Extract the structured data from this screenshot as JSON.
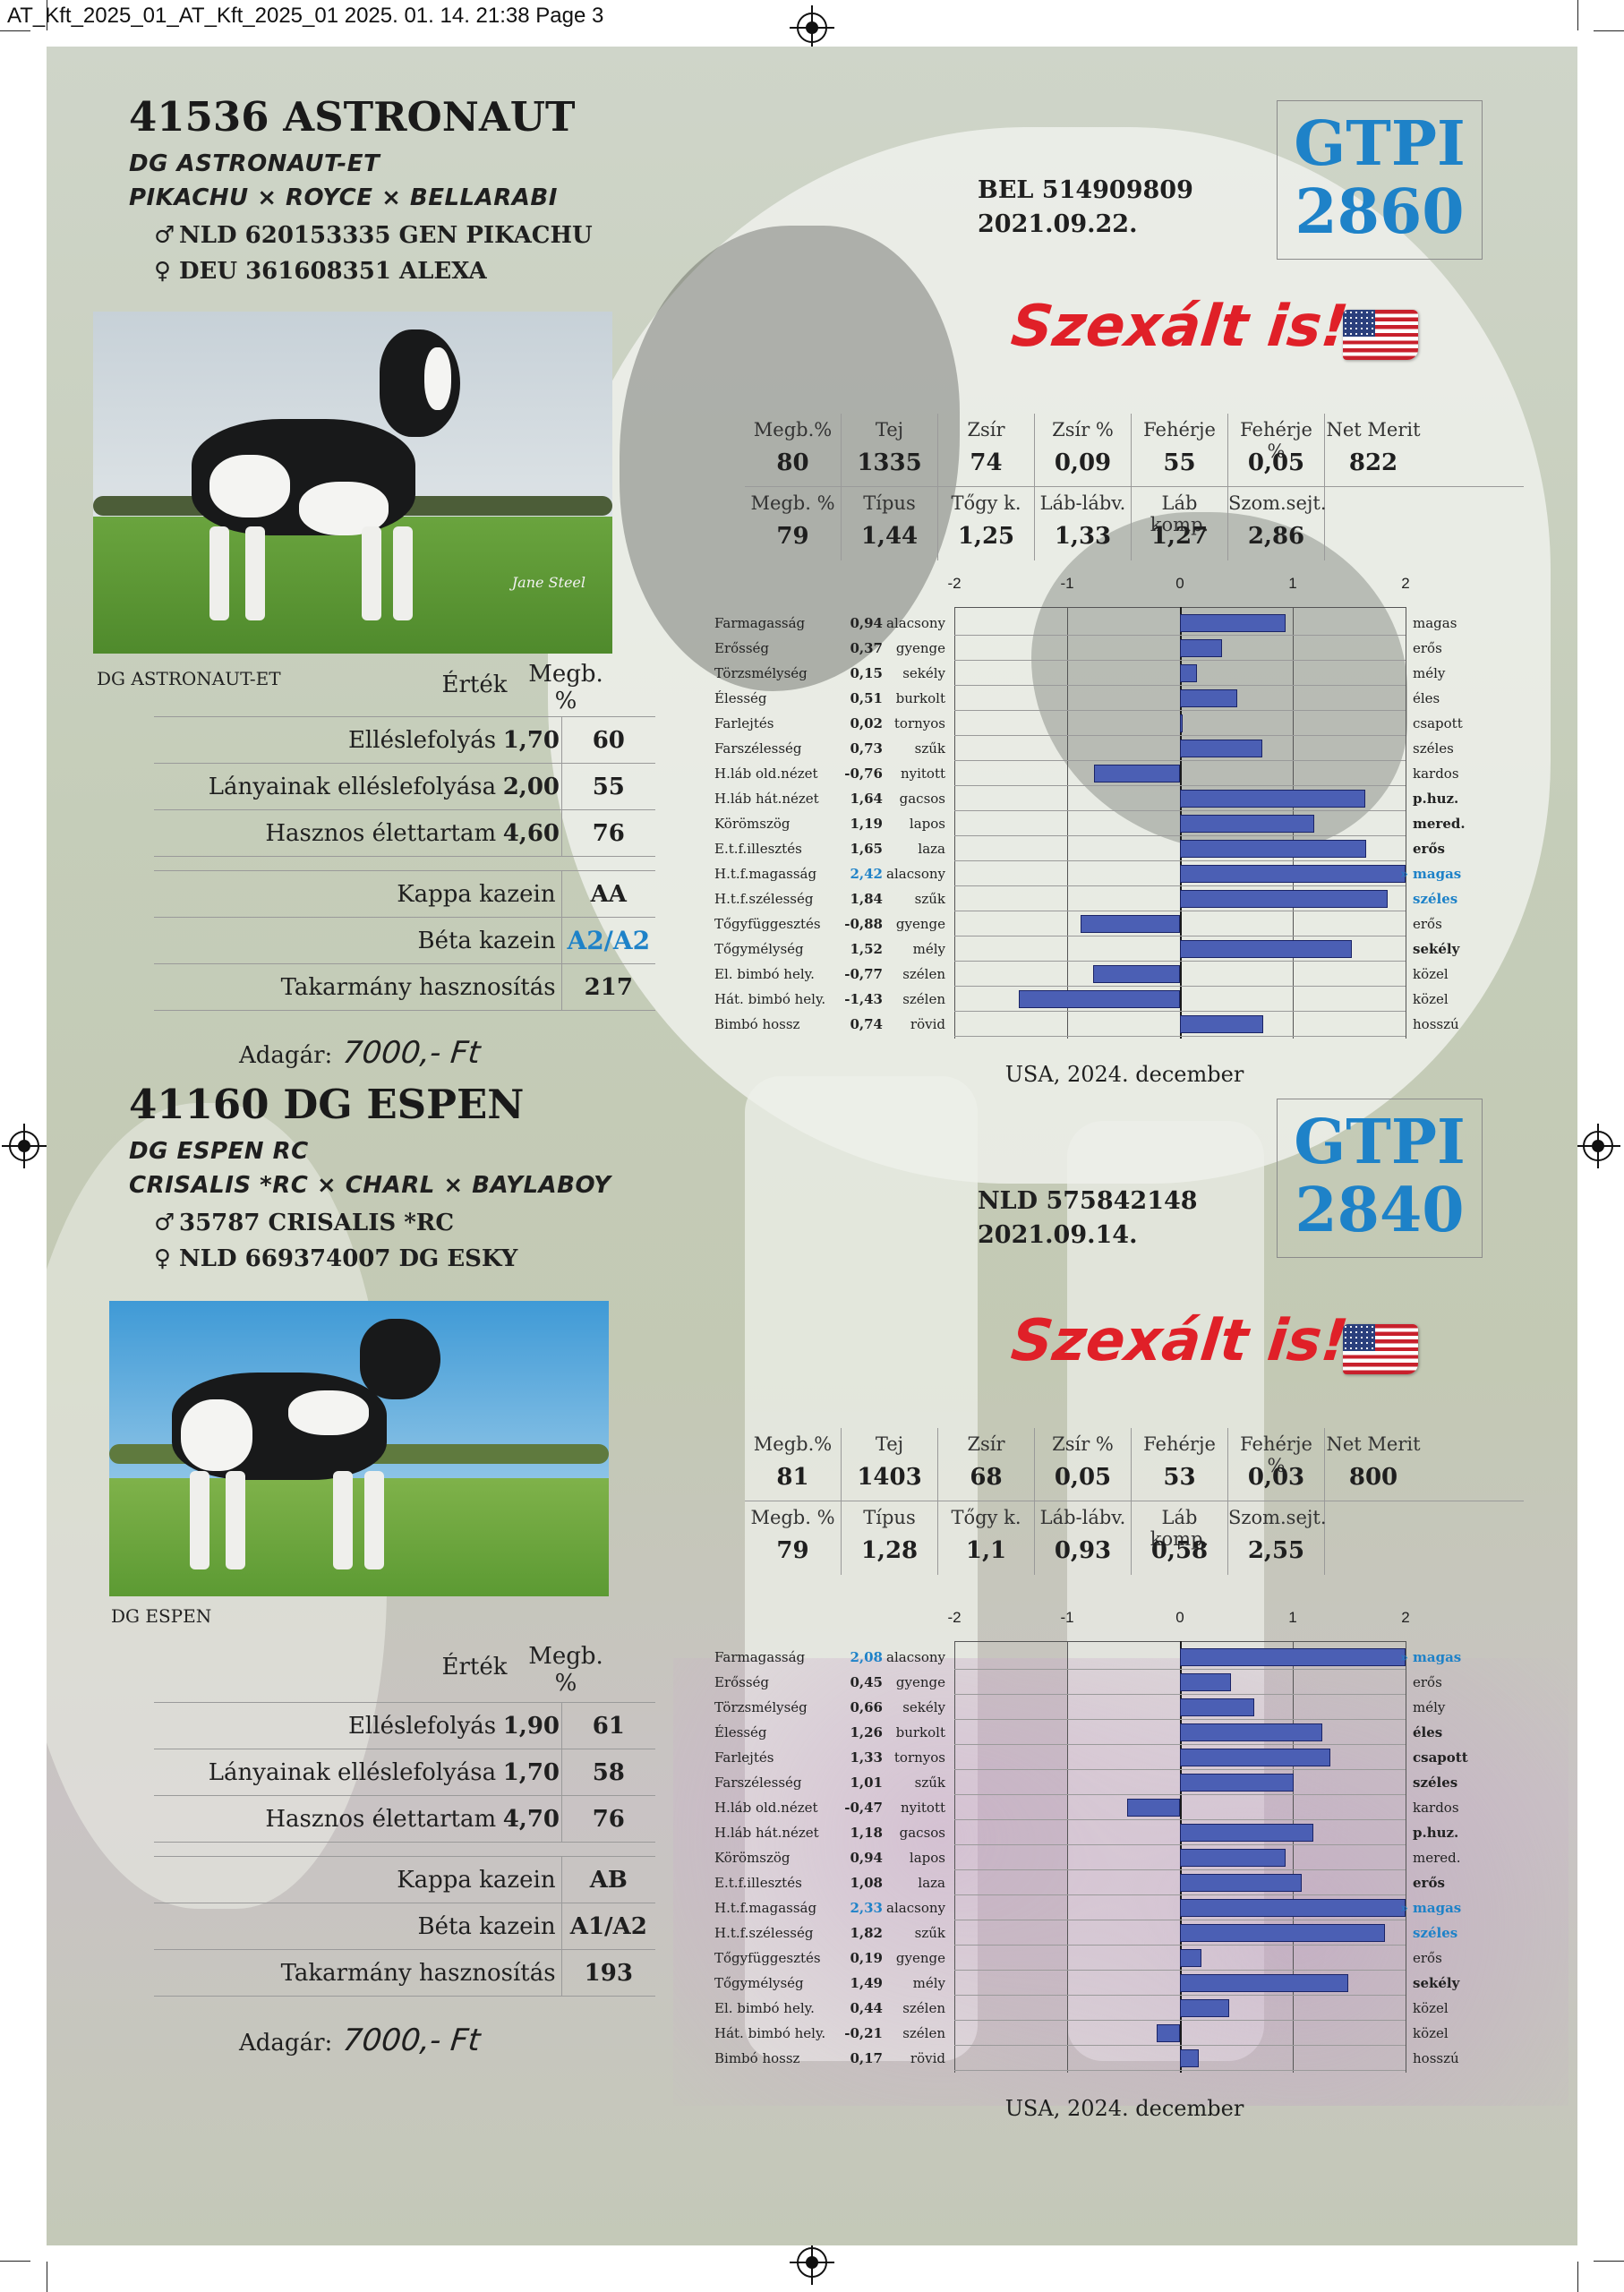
{
  "print_header": "AT_Kft_2025_01_AT_Kft_2025_01  2025. 01. 14.  21:38  Page 3",
  "bulls": [
    {
      "title": "41536 ASTRONAUT",
      "registered_name": "DG ASTRONAUT-ET",
      "pedigree": "PIKACHU × ROYCE × BELLARABI",
      "sire_symbol": "♂",
      "sire": "NLD 620153335 GEN PIKACHU",
      "dam_symbol": "♀",
      "dam": "DEU 361608351 ALEXA",
      "reg_id": "BEL 514909809",
      "birth_date": "2021.09.22.",
      "gtpi_label": "GTPI",
      "gtpi_value": "2860",
      "sexed_text": "Szexált is!",
      "flag_icon": "us-flag-icon",
      "photo_caption": "DG ASTRONAUT-ET",
      "photo_signature": "Jane Steel",
      "eval_header": {
        "value": "Érték",
        "reliability": "Megb.\n%"
      },
      "calving": [
        {
          "label": "Elléslefolyás",
          "value": "1,70",
          "rel": "60"
        },
        {
          "label": "Lányainak elléslefolyása",
          "value": "2,00",
          "rel": "55"
        },
        {
          "label": "Hasznos élettartam",
          "value": "4,60",
          "rel": "76"
        }
      ],
      "genetics": [
        {
          "label": "Kappa kazein",
          "value": "AA",
          "highlight": false
        },
        {
          "label": "Béta kazein",
          "value": "A2/A2",
          "highlight": true
        },
        {
          "label": "Takarmány hasznosítás",
          "value": "217",
          "highlight": false
        }
      ],
      "price_label": "Adagár:",
      "price": "7000,- Ft",
      "indices_row1": [
        {
          "label": "Megb.%",
          "value": "80"
        },
        {
          "label": "Tej",
          "value": "1335"
        },
        {
          "label": "Zsír",
          "value": "74"
        },
        {
          "label": "Zsír %",
          "value": "0,09"
        },
        {
          "label": "Fehérje",
          "value": "55"
        },
        {
          "label": "Fehérje %",
          "value": "0,05"
        },
        {
          "label": "Net Merit",
          "value": "822"
        }
      ],
      "indices_row2": [
        {
          "label": "Megb. %",
          "value": "79"
        },
        {
          "label": "Típus",
          "value": "1,44"
        },
        {
          "label": "Tőgy k.",
          "value": "1,25"
        },
        {
          "label": "Láb-lábv.",
          "value": "1,33"
        },
        {
          "label": "Láb komp.",
          "value": "1,27"
        },
        {
          "label": "Szom.sejt.",
          "value": "2,86"
        }
      ],
      "profile_caption": "USA, 2024. december"
    },
    {
      "title": "41160 DG ESPEN",
      "registered_name": "DG ESPEN RC",
      "pedigree": "CRISALIS *RC × CHARL × BAYLABOY",
      "sire_symbol": "♂",
      "sire": "35787 CRISALIS *RC",
      "dam_symbol": "♀",
      "dam": "NLD 669374007 DG ESKY",
      "reg_id": "NLD 575842148",
      "birth_date": "2021.09.14.",
      "gtpi_label": "GTPI",
      "gtpi_value": "2840",
      "sexed_text": "Szexált is!",
      "flag_icon": "us-flag-icon",
      "photo_caption": "DG ESPEN",
      "photo_signature": "",
      "eval_header": {
        "value": "Érték",
        "reliability": "Megb.\n%"
      },
      "calving": [
        {
          "label": "Elléslefolyás",
          "value": "1,90",
          "rel": "61"
        },
        {
          "label": "Lányainak elléslefolyása",
          "value": "1,70",
          "rel": "58"
        },
        {
          "label": "Hasznos élettartam",
          "value": "4,70",
          "rel": "76"
        }
      ],
      "genetics": [
        {
          "label": "Kappa kazein",
          "value": "AB",
          "highlight": false
        },
        {
          "label": "Béta kazein",
          "value": "A1/A2",
          "highlight": false
        },
        {
          "label": "Takarmány hasznosítás",
          "value": "193",
          "highlight": false
        }
      ],
      "price_label": "Adagár:",
      "price": "7000,- Ft",
      "indices_row1": [
        {
          "label": "Megb.%",
          "value": "81"
        },
        {
          "label": "Tej",
          "value": "1403"
        },
        {
          "label": "Zsír",
          "value": "68"
        },
        {
          "label": "Zsír %",
          "value": "0,05"
        },
        {
          "label": "Fehérje",
          "value": "53"
        },
        {
          "label": "Fehérje %",
          "value": "0,03"
        },
        {
          "label": "Net Merit",
          "value": "800"
        }
      ],
      "indices_row2": [
        {
          "label": "Megb. %",
          "value": "79"
        },
        {
          "label": "Típus",
          "value": "1,28"
        },
        {
          "label": "Tőgy k.",
          "value": "1,1"
        },
        {
          "label": "Láb-lábv.",
          "value": "0,93"
        },
        {
          "label": "Láb komp.",
          "value": "0,58"
        },
        {
          "label": "Szom.sejt.",
          "value": "2,55"
        }
      ],
      "profile_caption": "USA, 2024. december"
    }
  ],
  "chart_data": [
    {
      "type": "bar",
      "orientation": "horizontal",
      "x_ticks": [
        "-2",
        "-1",
        "0",
        "1",
        "2"
      ],
      "xlim": [
        -2,
        2
      ],
      "overflow_marker": "»",
      "traits": [
        {
          "name": "Farmagasság",
          "value": 0.94,
          "label": "0,94",
          "low": "alacsony",
          "high": "magas",
          "high_style": "normal"
        },
        {
          "name": "Erősség",
          "value": 0.37,
          "label": "0,37",
          "low": "gyenge",
          "high": "erős",
          "high_style": "normal"
        },
        {
          "name": "Törzsmélység",
          "value": 0.15,
          "label": "0,15",
          "low": "sekély",
          "high": "mély",
          "high_style": "normal"
        },
        {
          "name": "Élesség",
          "value": 0.51,
          "label": "0,51",
          "low": "burkolt",
          "high": "éles",
          "high_style": "normal"
        },
        {
          "name": "Farlejtés",
          "value": 0.02,
          "label": "0,02",
          "low": "tornyos",
          "high": "csapott",
          "high_style": "normal"
        },
        {
          "name": "Farszélesség",
          "value": 0.73,
          "label": "0,73",
          "low": "szűk",
          "high": "széles",
          "high_style": "normal"
        },
        {
          "name": "H.láb old.nézet",
          "value": -0.76,
          "label": "-0,76",
          "low": "nyitott",
          "high": "kardos",
          "high_style": "normal"
        },
        {
          "name": "H.láb hát.nézet",
          "value": 1.64,
          "label": "1,64",
          "low": "gacsos",
          "high": "p.huz.",
          "high_style": "bold"
        },
        {
          "name": "Körömszög",
          "value": 1.19,
          "label": "1,19",
          "low": "lapos",
          "high": "mered.",
          "high_style": "bold"
        },
        {
          "name": "E.t.f.illesztés",
          "value": 1.65,
          "label": "1,65",
          "low": "laza",
          "high": "erős",
          "high_style": "bold"
        },
        {
          "name": "H.t.f.magasság",
          "value": 2.42,
          "label": "2,42",
          "low": "alacsony",
          "high": "magas",
          "high_style": "highlight",
          "value_highlight": true
        },
        {
          "name": "H.t.f.szélesség",
          "value": 1.84,
          "label": "1,84",
          "low": "szűk",
          "high": "széles",
          "high_style": "highlight"
        },
        {
          "name": "Tőgyfüggesztés",
          "value": -0.88,
          "label": "-0,88",
          "low": "gyenge",
          "high": "erős",
          "high_style": "normal"
        },
        {
          "name": "Tőgymélység",
          "value": 1.52,
          "label": "1,52",
          "low": "mély",
          "high": "sekély",
          "high_style": "bold"
        },
        {
          "name": "El. bimbó hely.",
          "value": -0.77,
          "label": "-0,77",
          "low": "szélen",
          "high": "közel",
          "high_style": "normal"
        },
        {
          "name": "Hát. bimbó hely.",
          "value": -1.43,
          "label": "-1,43",
          "low": "szélen",
          "high": "közel",
          "high_style": "normal"
        },
        {
          "name": "Bimbó hossz",
          "value": 0.74,
          "label": "0,74",
          "low": "rövid",
          "high": "hosszú",
          "high_style": "normal"
        }
      ]
    },
    {
      "type": "bar",
      "orientation": "horizontal",
      "x_ticks": [
        "-2",
        "-1",
        "0",
        "1",
        "2"
      ],
      "xlim": [
        -2,
        2
      ],
      "overflow_marker": "»",
      "traits": [
        {
          "name": "Farmagasság",
          "value": 2.08,
          "label": "2,08",
          "low": "alacsony",
          "high": "magas",
          "high_style": "highlight",
          "value_highlight": true
        },
        {
          "name": "Erősség",
          "value": 0.45,
          "label": "0,45",
          "low": "gyenge",
          "high": "erős",
          "high_style": "normal"
        },
        {
          "name": "Törzsmélység",
          "value": 0.66,
          "label": "0,66",
          "low": "sekély",
          "high": "mély",
          "high_style": "normal"
        },
        {
          "name": "Élesség",
          "value": 1.26,
          "label": "1,26",
          "low": "burkolt",
          "high": "éles",
          "high_style": "bold"
        },
        {
          "name": "Farlejtés",
          "value": 1.33,
          "label": "1,33",
          "low": "tornyos",
          "high": "csapott",
          "high_style": "bold"
        },
        {
          "name": "Farszélesség",
          "value": 1.01,
          "label": "1,01",
          "low": "szűk",
          "high": "széles",
          "high_style": "bold"
        },
        {
          "name": "H.láb old.nézet",
          "value": -0.47,
          "label": "-0,47",
          "low": "nyitott",
          "high": "kardos",
          "high_style": "normal"
        },
        {
          "name": "H.láb hát.nézet",
          "value": 1.18,
          "label": "1,18",
          "low": "gacsos",
          "high": "p.huz.",
          "high_style": "bold"
        },
        {
          "name": "Körömszög",
          "value": 0.94,
          "label": "0,94",
          "low": "lapos",
          "high": "mered.",
          "high_style": "normal"
        },
        {
          "name": "E.t.f.illesztés",
          "value": 1.08,
          "label": "1,08",
          "low": "laza",
          "high": "erős",
          "high_style": "bold"
        },
        {
          "name": "H.t.f.magasság",
          "value": 2.33,
          "label": "2,33",
          "low": "alacsony",
          "high": "magas",
          "high_style": "highlight",
          "value_highlight": true
        },
        {
          "name": "H.t.f.szélesség",
          "value": 1.82,
          "label": "1,82",
          "low": "szűk",
          "high": "széles",
          "high_style": "highlight"
        },
        {
          "name": "Tőgyfüggesztés",
          "value": 0.19,
          "label": "0,19",
          "low": "gyenge",
          "high": "erős",
          "high_style": "normal"
        },
        {
          "name": "Tőgymélység",
          "value": 1.49,
          "label": "1,49",
          "low": "mély",
          "high": "sekély",
          "high_style": "bold"
        },
        {
          "name": "El. bimbó hely.",
          "value": 0.44,
          "label": "0,44",
          "low": "szélen",
          "high": "közel",
          "high_style": "normal"
        },
        {
          "name": "Hát. bimbó hely.",
          "value": -0.21,
          "label": "-0,21",
          "low": "szélen",
          "high": "közel",
          "high_style": "normal"
        },
        {
          "name": "Bimbó hossz",
          "value": 0.17,
          "label": "0,17",
          "low": "rövid",
          "high": "hosszú",
          "high_style": "normal"
        }
      ]
    }
  ],
  "colors": {
    "gtpi": "#1e82c8",
    "sexed": "#e02028",
    "bar_fill": "#4b5fb4",
    "bar_border": "#1b2466",
    "highlight_text": "#1e82c8"
  }
}
